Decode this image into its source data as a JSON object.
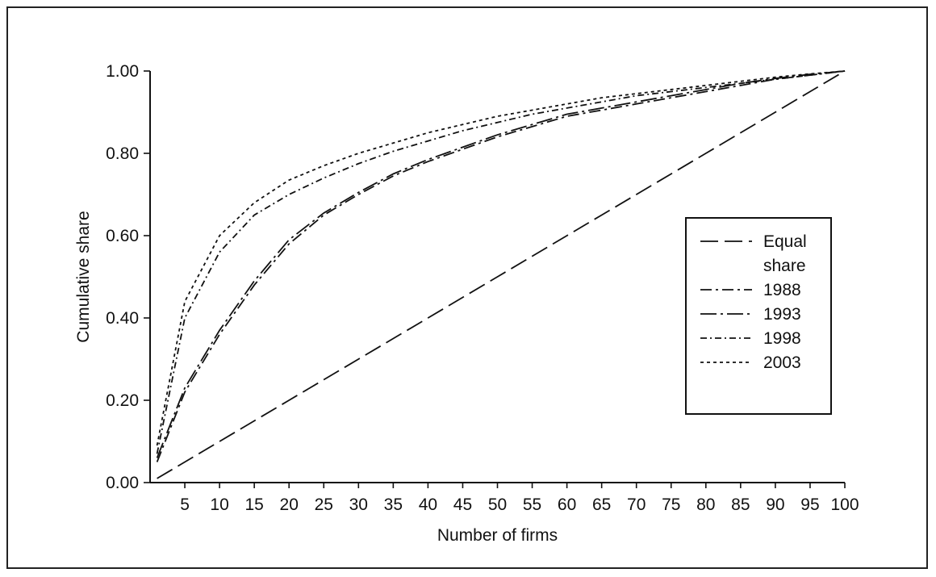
{
  "chart_data": {
    "type": "line",
    "title": "",
    "xlabel": "Number of firms",
    "ylabel": "Cumulative share",
    "xlim": [
      0,
      100
    ],
    "ylim": [
      0,
      1
    ],
    "x_ticks": [
      5,
      10,
      15,
      20,
      25,
      30,
      35,
      40,
      45,
      50,
      55,
      60,
      65,
      70,
      75,
      80,
      85,
      90,
      95,
      100
    ],
    "x_tick_labels": [
      "5",
      "10",
      "15",
      "20",
      "25",
      "30",
      "35",
      "40",
      "45",
      "50",
      "55",
      "60",
      "65",
      "70",
      "75",
      "80",
      "85",
      "90",
      "95",
      "100"
    ],
    "y_ticks": [
      0,
      0.2,
      0.4,
      0.6,
      0.8,
      1.0
    ],
    "y_tick_labels": [
      "0.00",
      "0.20",
      "0.40",
      "0.60",
      "0.80",
      "1.00"
    ],
    "grid": false,
    "legend_position": "right",
    "x": [
      1,
      5,
      10,
      15,
      20,
      25,
      30,
      35,
      40,
      45,
      50,
      55,
      60,
      65,
      70,
      75,
      80,
      85,
      90,
      95,
      100
    ],
    "series": [
      {
        "name": "Equal share",
        "dash": "long-dash",
        "values": [
          0.01,
          0.05,
          0.1,
          0.15,
          0.2,
          0.25,
          0.3,
          0.35,
          0.4,
          0.45,
          0.5,
          0.55,
          0.6,
          0.65,
          0.7,
          0.75,
          0.8,
          0.85,
          0.9,
          0.95,
          1.0
        ]
      },
      {
        "name": "1988",
        "dash": "dash-dot",
        "values": [
          0.05,
          0.22,
          0.36,
          0.48,
          0.58,
          0.65,
          0.7,
          0.745,
          0.78,
          0.81,
          0.84,
          0.865,
          0.89,
          0.905,
          0.92,
          0.935,
          0.95,
          0.965,
          0.98,
          0.99,
          1.0
        ]
      },
      {
        "name": "1993",
        "dash": "long-dash-dot",
        "values": [
          0.06,
          0.23,
          0.37,
          0.49,
          0.59,
          0.655,
          0.705,
          0.75,
          0.785,
          0.815,
          0.845,
          0.87,
          0.895,
          0.91,
          0.925,
          0.94,
          0.955,
          0.97,
          0.982,
          0.992,
          1.0
        ]
      },
      {
        "name": "1998",
        "dash": "dash-dot-fine",
        "values": [
          0.07,
          0.4,
          0.56,
          0.65,
          0.7,
          0.74,
          0.775,
          0.805,
          0.83,
          0.855,
          0.875,
          0.895,
          0.91,
          0.925,
          0.94,
          0.95,
          0.96,
          0.97,
          0.98,
          0.99,
          1.0
        ]
      },
      {
        "name": "2003",
        "dash": "short-dash",
        "values": [
          0.09,
          0.44,
          0.6,
          0.68,
          0.735,
          0.77,
          0.8,
          0.825,
          0.85,
          0.87,
          0.89,
          0.905,
          0.92,
          0.935,
          0.945,
          0.955,
          0.965,
          0.975,
          0.985,
          0.993,
          1.0
        ]
      }
    ],
    "legend_label_lines": {
      "Equal share": [
        "Equal",
        "share"
      ]
    }
  },
  "colors": {
    "line": "#111111",
    "axis": "#111111",
    "background": "#ffffff"
  }
}
